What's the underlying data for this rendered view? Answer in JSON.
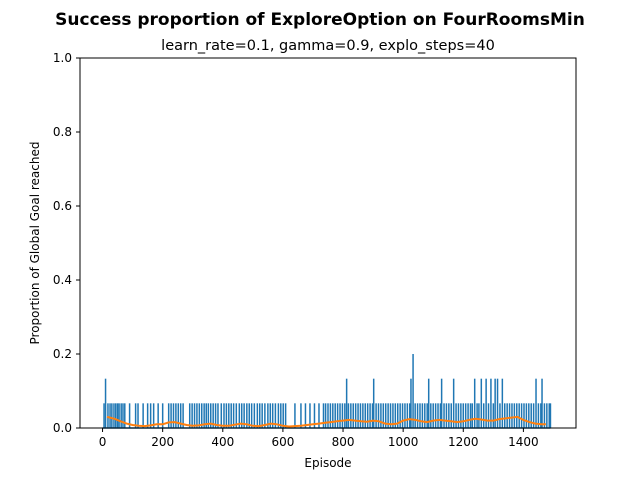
{
  "chart_data": {
    "type": "line",
    "title": "Success proportion of ExploreOption on FourRoomsMin",
    "subtitle": "learn_rate=0.1, gamma=0.9, explo_steps=40",
    "xlabel": "Episode",
    "ylabel": "Proportion of Global Goal reached",
    "xlim": [
      -75,
      1575
    ],
    "ylim": [
      0,
      1.0
    ],
    "xticks": [
      0,
      200,
      400,
      600,
      800,
      1000,
      1200,
      1400
    ],
    "yticks": [
      0.0,
      0.2,
      0.4,
      0.6,
      0.8,
      1.0
    ],
    "grid": false,
    "colors": {
      "raw": "#1f77b4",
      "smoothed": "#ff7f0e"
    },
    "series": [
      {
        "type": "spike",
        "description_free": true,
        "x_range": [
          0,
          1490
        ],
        "base": 0.0,
        "spikes": [
          [
            5,
            0.0667
          ],
          [
            10,
            0.1333
          ],
          [
            18,
            0.0667
          ],
          [
            25,
            0.0667
          ],
          [
            31,
            0.0667
          ],
          [
            38,
            0.0667
          ],
          [
            44,
            0.0667
          ],
          [
            50,
            0.0667
          ],
          [
            55,
            0.0667
          ],
          [
            62,
            0.0667
          ],
          [
            68,
            0.0667
          ],
          [
            74,
            0.0667
          ],
          [
            90,
            0.0667
          ],
          [
            110,
            0.0667
          ],
          [
            118,
            0.0667
          ],
          [
            135,
            0.0667
          ],
          [
            150,
            0.0667
          ],
          [
            160,
            0.0667
          ],
          [
            170,
            0.0667
          ],
          [
            185,
            0.0667
          ],
          [
            200,
            0.0667
          ],
          [
            220,
            0.0667
          ],
          [
            228,
            0.0667
          ],
          [
            236,
            0.0667
          ],
          [
            244,
            0.0667
          ],
          [
            252,
            0.0667
          ],
          [
            260,
            0.0667
          ],
          [
            268,
            0.0667
          ],
          [
            290,
            0.0667
          ],
          [
            298,
            0.0667
          ],
          [
            306,
            0.0667
          ],
          [
            314,
            0.0667
          ],
          [
            322,
            0.0667
          ],
          [
            330,
            0.0667
          ],
          [
            338,
            0.0667
          ],
          [
            345,
            0.0667
          ],
          [
            352,
            0.0667
          ],
          [
            360,
            0.0667
          ],
          [
            368,
            0.0667
          ],
          [
            376,
            0.0667
          ],
          [
            384,
            0.0667
          ],
          [
            395,
            0.0667
          ],
          [
            404,
            0.0667
          ],
          [
            412,
            0.0667
          ],
          [
            420,
            0.0667
          ],
          [
            428,
            0.0667
          ],
          [
            436,
            0.0667
          ],
          [
            445,
            0.0667
          ],
          [
            455,
            0.0667
          ],
          [
            463,
            0.0667
          ],
          [
            471,
            0.0667
          ],
          [
            480,
            0.0667
          ],
          [
            488,
            0.0667
          ],
          [
            496,
            0.0667
          ],
          [
            505,
            0.0667
          ],
          [
            515,
            0.0667
          ],
          [
            523,
            0.0667
          ],
          [
            531,
            0.0667
          ],
          [
            540,
            0.0667
          ],
          [
            550,
            0.0667
          ],
          [
            558,
            0.0667
          ],
          [
            566,
            0.0667
          ],
          [
            575,
            0.0667
          ],
          [
            585,
            0.0667
          ],
          [
            593,
            0.0667
          ],
          [
            601,
            0.0667
          ],
          [
            609,
            0.0667
          ],
          [
            640,
            0.0667
          ],
          [
            660,
            0.0667
          ],
          [
            675,
            0.0667
          ],
          [
            690,
            0.0667
          ],
          [
            705,
            0.0667
          ],
          [
            720,
            0.0667
          ],
          [
            735,
            0.0667
          ],
          [
            742,
            0.0667
          ],
          [
            750,
            0.0667
          ],
          [
            758,
            0.0667
          ],
          [
            766,
            0.0667
          ],
          [
            774,
            0.0667
          ],
          [
            782,
            0.0667
          ],
          [
            790,
            0.0667
          ],
          [
            798,
            0.0667
          ],
          [
            806,
            0.0667
          ],
          [
            812,
            0.1333
          ],
          [
            818,
            0.0667
          ],
          [
            826,
            0.0667
          ],
          [
            834,
            0.0667
          ],
          [
            842,
            0.0667
          ],
          [
            850,
            0.0667
          ],
          [
            858,
            0.0667
          ],
          [
            866,
            0.0667
          ],
          [
            874,
            0.0667
          ],
          [
            882,
            0.0667
          ],
          [
            890,
            0.0667
          ],
          [
            898,
            0.0667
          ],
          [
            902,
            0.1333
          ],
          [
            910,
            0.0667
          ],
          [
            918,
            0.0667
          ],
          [
            926,
            0.0667
          ],
          [
            934,
            0.0667
          ],
          [
            942,
            0.0667
          ],
          [
            950,
            0.0667
          ],
          [
            958,
            0.0667
          ],
          [
            966,
            0.0667
          ],
          [
            974,
            0.0667
          ],
          [
            982,
            0.0667
          ],
          [
            990,
            0.0667
          ],
          [
            998,
            0.0667
          ],
          [
            1006,
            0.0667
          ],
          [
            1014,
            0.0667
          ],
          [
            1022,
            0.0667
          ],
          [
            1026,
            0.1333
          ],
          [
            1033,
            0.2
          ],
          [
            1040,
            0.0667
          ],
          [
            1048,
            0.0667
          ],
          [
            1056,
            0.0667
          ],
          [
            1064,
            0.0667
          ],
          [
            1072,
            0.0667
          ],
          [
            1080,
            0.0667
          ],
          [
            1085,
            0.1333
          ],
          [
            1092,
            0.0667
          ],
          [
            1100,
            0.0667
          ],
          [
            1108,
            0.0667
          ],
          [
            1116,
            0.0667
          ],
          [
            1124,
            0.0667
          ],
          [
            1128,
            0.1333
          ],
          [
            1136,
            0.0667
          ],
          [
            1144,
            0.0667
          ],
          [
            1152,
            0.0667
          ],
          [
            1160,
            0.0667
          ],
          [
            1168,
            0.1333
          ],
          [
            1176,
            0.0667
          ],
          [
            1184,
            0.0667
          ],
          [
            1192,
            0.0667
          ],
          [
            1200,
            0.0667
          ],
          [
            1208,
            0.0667
          ],
          [
            1216,
            0.0667
          ],
          [
            1224,
            0.0667
          ],
          [
            1230,
            0.0667
          ],
          [
            1238,
            0.1333
          ],
          [
            1246,
            0.0667
          ],
          [
            1252,
            0.0667
          ],
          [
            1260,
            0.1333
          ],
          [
            1268,
            0.0667
          ],
          [
            1276,
            0.1333
          ],
          [
            1284,
            0.0667
          ],
          [
            1292,
            0.1333
          ],
          [
            1300,
            0.0667
          ],
          [
            1306,
            0.1333
          ],
          [
            1314,
            0.1333
          ],
          [
            1322,
            0.0667
          ],
          [
            1330,
            0.1333
          ],
          [
            1338,
            0.0667
          ],
          [
            1346,
            0.0667
          ],
          [
            1354,
            0.0667
          ],
          [
            1362,
            0.0667
          ],
          [
            1370,
            0.0667
          ],
          [
            1378,
            0.0667
          ],
          [
            1386,
            0.0667
          ],
          [
            1394,
            0.0667
          ],
          [
            1402,
            0.0667
          ],
          [
            1410,
            0.0667
          ],
          [
            1418,
            0.0667
          ],
          [
            1426,
            0.0667
          ],
          [
            1434,
            0.0667
          ],
          [
            1442,
            0.1333
          ],
          [
            1450,
            0.0667
          ],
          [
            1458,
            0.0667
          ],
          [
            1462,
            0.1333
          ],
          [
            1470,
            0.0667
          ],
          [
            1478,
            0.0667
          ],
          [
            1486,
            0.0667
          ],
          [
            1490,
            0.0667
          ]
        ]
      },
      {
        "type": "line",
        "x": [
          15,
          40,
          60,
          80,
          100,
          120,
          140,
          160,
          180,
          200,
          220,
          240,
          260,
          280,
          300,
          320,
          340,
          360,
          380,
          400,
          420,
          440,
          460,
          480,
          500,
          520,
          540,
          560,
          580,
          600,
          620,
          640,
          660,
          680,
          700,
          720,
          740,
          760,
          780,
          800,
          820,
          840,
          860,
          880,
          900,
          920,
          940,
          960,
          980,
          1000,
          1020,
          1040,
          1060,
          1080,
          1100,
          1120,
          1140,
          1160,
          1180,
          1200,
          1220,
          1240,
          1260,
          1280,
          1300,
          1320,
          1340,
          1360,
          1380,
          1400,
          1420,
          1440,
          1460,
          1475
        ],
        "y": [
          0.03,
          0.025,
          0.018,
          0.012,
          0.008,
          0.006,
          0.005,
          0.007,
          0.01,
          0.01,
          0.015,
          0.016,
          0.012,
          0.008,
          0.006,
          0.007,
          0.01,
          0.012,
          0.008,
          0.006,
          0.006,
          0.009,
          0.012,
          0.01,
          0.006,
          0.005,
          0.008,
          0.012,
          0.01,
          0.006,
          0.004,
          0.005,
          0.006,
          0.008,
          0.01,
          0.012,
          0.014,
          0.016,
          0.018,
          0.02,
          0.022,
          0.02,
          0.018,
          0.017,
          0.02,
          0.018,
          0.012,
          0.01,
          0.012,
          0.02,
          0.024,
          0.022,
          0.018,
          0.016,
          0.02,
          0.022,
          0.02,
          0.018,
          0.016,
          0.018,
          0.022,
          0.025,
          0.023,
          0.02,
          0.02,
          0.024,
          0.026,
          0.028,
          0.03,
          0.022,
          0.016,
          0.012,
          0.01,
          0.01
        ]
      }
    ]
  }
}
